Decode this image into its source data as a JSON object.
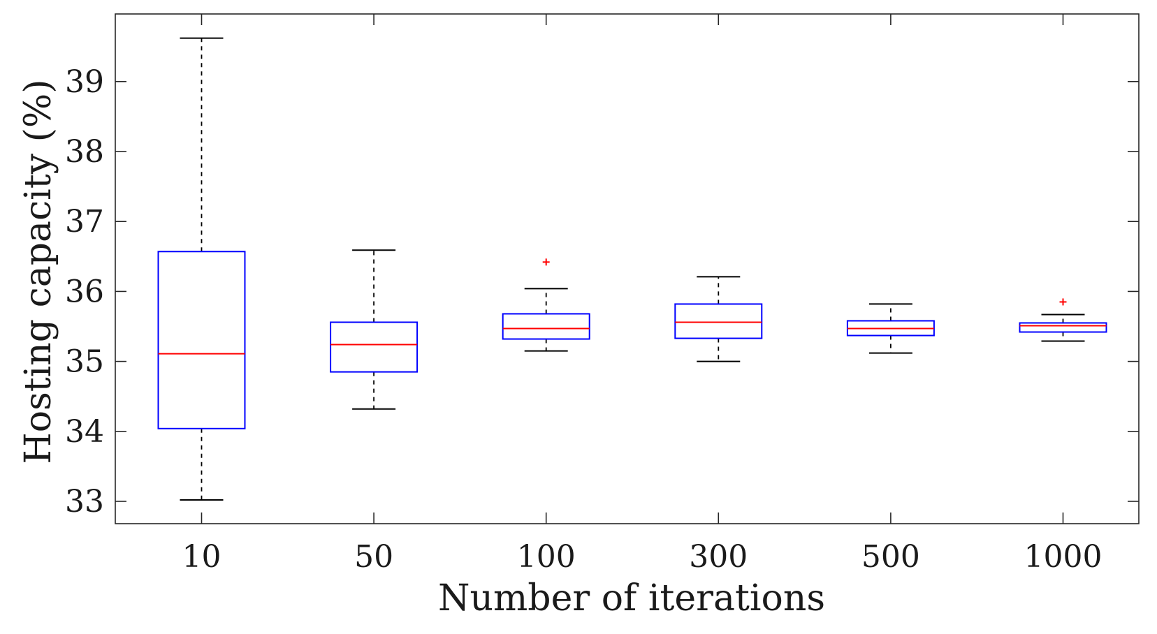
{
  "chart_data": {
    "type": "boxplot",
    "title": "",
    "xlabel": "Number of iterations",
    "ylabel": "Hosting capacity (%)",
    "ylim": [
      32.7,
      40.0
    ],
    "yticks": [
      33,
      34,
      35,
      36,
      37,
      38,
      39
    ],
    "categories": [
      "10",
      "50",
      "100",
      "300",
      "500",
      "1000"
    ],
    "boxes": [
      {
        "category": "10",
        "whisker_low": 33.02,
        "q1": 34.04,
        "median": 35.11,
        "q3": 36.57,
        "whisker_high": 39.62,
        "outliers": []
      },
      {
        "category": "50",
        "whisker_low": 34.32,
        "q1": 34.85,
        "median": 35.24,
        "q3": 35.56,
        "whisker_high": 36.59,
        "outliers": []
      },
      {
        "category": "100",
        "whisker_low": 35.15,
        "q1": 35.32,
        "median": 35.47,
        "q3": 35.68,
        "whisker_high": 36.04,
        "outliers": [
          36.42
        ]
      },
      {
        "category": "300",
        "whisker_low": 35.0,
        "q1": 35.33,
        "median": 35.56,
        "q3": 35.82,
        "whisker_high": 36.21,
        "outliers": []
      },
      {
        "category": "500",
        "whisker_low": 35.12,
        "q1": 35.37,
        "median": 35.47,
        "q3": 35.58,
        "whisker_high": 35.82,
        "outliers": []
      },
      {
        "category": "1000",
        "whisker_low": 35.29,
        "q1": 35.42,
        "median": 35.51,
        "q3": 35.55,
        "whisker_high": 35.67,
        "outliers": [
          35.85
        ]
      }
    ],
    "colors": {
      "box": "#0000ff",
      "median": "#ff0000",
      "whisker": "#000000",
      "outlier": "#ff0000",
      "axis": "#262626"
    },
    "grid": false,
    "legend": "none"
  }
}
